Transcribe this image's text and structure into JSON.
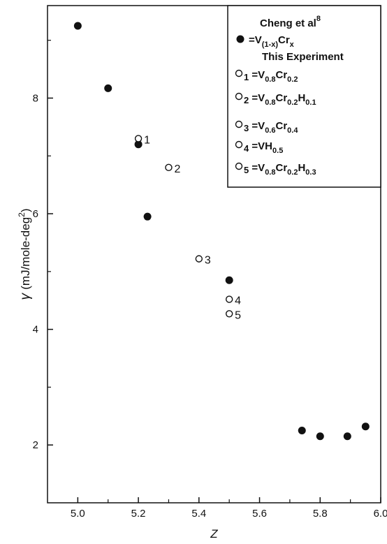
{
  "chart_data": {
    "type": "scatter",
    "xlabel": "Z",
    "ylabel_symbol": "γ",
    "ylabel_units": "(mJ/mole-deg",
    "ylabel_sup": "2",
    "ylabel_close": ")",
    "xlim": [
      4.9,
      6.0
    ],
    "ylim": [
      1.0,
      9.6
    ],
    "x_ticks": [
      "5.0",
      "5.2",
      "5.4",
      "5.6",
      "5.8",
      "6.0"
    ],
    "y_ticks": [
      "2",
      "4",
      "6",
      "8"
    ],
    "grid": false,
    "legend_position": "top-right",
    "legend": {
      "heading": "Cheng et al",
      "heading_sup": "8",
      "filled_entry": {
        "lead": "=V",
        "sub1": "(1-x)",
        "mid": "Cr",
        "sub2": "x"
      },
      "subheading": "This Experiment",
      "open_entries": [
        {
          "num": "1",
          "parts": [
            [
              "=",
              ""
            ],
            [
              "V",
              "0.8"
            ],
            [
              "Cr",
              "0.2"
            ]
          ]
        },
        {
          "num": "2",
          "parts": [
            [
              "=",
              ""
            ],
            [
              "V",
              "0.8"
            ],
            [
              "Cr",
              "0.2"
            ],
            [
              "H",
              "0.1"
            ]
          ]
        },
        {
          "num": "3",
          "parts": [
            [
              "=",
              ""
            ],
            [
              "V",
              "0.6"
            ],
            [
              "Cr",
              "0.4"
            ]
          ]
        },
        {
          "num": "4",
          "parts": [
            [
              "=",
              ""
            ],
            [
              "VH",
              "0.5"
            ]
          ]
        },
        {
          "num": "5",
          "parts": [
            [
              "=",
              ""
            ],
            [
              "V",
              "0.8"
            ],
            [
              "Cr",
              "0.2"
            ],
            [
              "H",
              "0.3"
            ]
          ]
        }
      ]
    },
    "series": [
      {
        "name": "Cheng et al",
        "marker": "filled",
        "points": [
          {
            "x": 5.0,
            "y": 9.25
          },
          {
            "x": 5.1,
            "y": 8.17
          },
          {
            "x": 5.2,
            "y": 7.2
          },
          {
            "x": 5.23,
            "y": 5.95
          },
          {
            "x": 5.5,
            "y": 4.85
          },
          {
            "x": 5.74,
            "y": 2.25
          },
          {
            "x": 5.8,
            "y": 2.15
          },
          {
            "x": 5.89,
            "y": 2.15
          },
          {
            "x": 5.95,
            "y": 2.32
          }
        ]
      },
      {
        "name": "This Experiment",
        "marker": "open",
        "points": [
          {
            "x": 5.2,
            "y": 7.3,
            "label": "1"
          },
          {
            "x": 5.3,
            "y": 6.8,
            "label": "2"
          },
          {
            "x": 5.4,
            "y": 5.22,
            "label": "3"
          },
          {
            "x": 5.5,
            "y": 4.52,
            "label": "4"
          },
          {
            "x": 5.5,
            "y": 4.27,
            "label": "5"
          }
        ]
      }
    ]
  }
}
